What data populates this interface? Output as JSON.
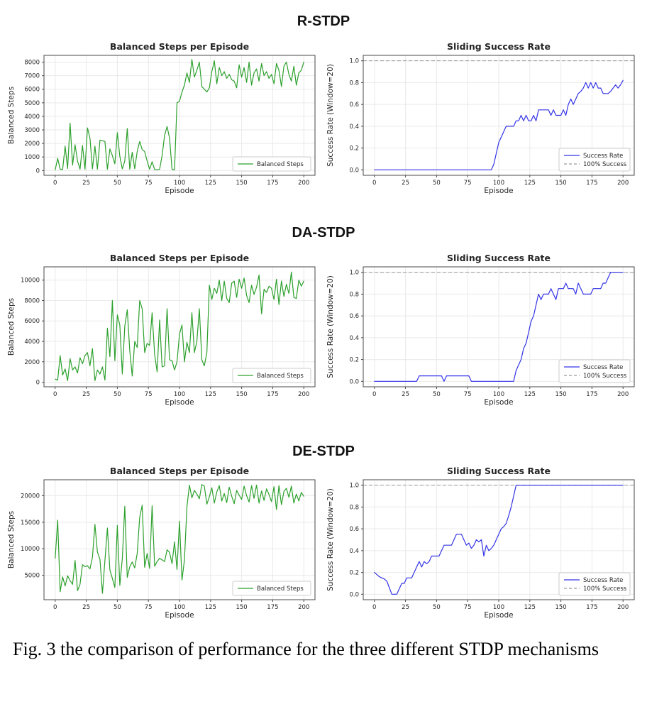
{
  "page": {
    "section_titles": [
      "R-STDP",
      "DA-STDP",
      "DE-STDP"
    ],
    "caption": "Fig. 3 the comparison of performance for the three different STDP mechanisms"
  },
  "chart_data": [
    {
      "id": "r-stdp-balanced-steps",
      "type": "line",
      "title": "Balanced Steps per Episode",
      "xlabel": "Episode",
      "ylabel": "Balanced Steps",
      "xlim": [
        -9,
        209
      ],
      "ylim": [
        -350,
        8500
      ],
      "xticks": [
        0,
        25,
        50,
        75,
        100,
        125,
        150,
        175,
        200
      ],
      "yticks": [
        0,
        1000,
        2000,
        3000,
        4000,
        5000,
        6000,
        7000,
        8000
      ],
      "ytick_labels": [
        "0",
        "1000",
        "2000",
        "3000",
        "4000",
        "5000",
        "6000",
        "7000",
        "8000"
      ],
      "grid": true,
      "legend_position": "lower right",
      "ref_line": null,
      "series": [
        {
          "name": "Balanced Steps",
          "color": "#2ca02c",
          "dash": null,
          "x_start": 0,
          "x_step": 2,
          "values": [
            50,
            900,
            100,
            80,
            1800,
            150,
            3500,
            400,
            1900,
            700,
            100,
            1850,
            90,
            3150,
            2400,
            120,
            1800,
            100,
            2250,
            2200,
            2150,
            90,
            1600,
            1100,
            500,
            2800,
            1050,
            120,
            700,
            3100,
            90,
            1350,
            130,
            1400,
            2150,
            1550,
            1400,
            700,
            100,
            650,
            80,
            60,
            100,
            1100,
            2600,
            3250,
            2400,
            90,
            60,
            5000,
            5100,
            5800,
            6300,
            7200,
            6500,
            8200,
            6900,
            7400,
            8000,
            6200,
            6000,
            5800,
            6100,
            7300,
            8100,
            6400,
            7600,
            7000,
            7300,
            6800,
            7100,
            6700,
            6600,
            6100,
            7800,
            6900,
            7600,
            6500,
            8000,
            6300,
            7200,
            7500,
            6600,
            7900,
            7000,
            7300,
            6800,
            7100,
            6400,
            7900,
            7400,
            6200,
            7700,
            8000,
            7100,
            6600,
            7700,
            6300,
            7200,
            7400,
            8000
          ]
        }
      ]
    },
    {
      "id": "r-stdp-success-rate",
      "type": "line",
      "title": "Sliding Success Rate",
      "xlabel": "Episode",
      "ylabel": "Success Rate (Window=20)",
      "xlim": [
        -9,
        209
      ],
      "ylim": [
        -0.05,
        1.05
      ],
      "xticks": [
        0,
        25,
        50,
        75,
        100,
        125,
        150,
        175,
        200
      ],
      "yticks": [
        0.0,
        0.2,
        0.4,
        0.6,
        0.8,
        1.0
      ],
      "ytick_labels": [
        "0.0",
        "0.2",
        "0.4",
        "0.6",
        "0.8",
        "1.0"
      ],
      "grid": true,
      "legend_position": "lower right",
      "ref_line": {
        "y": 1.0,
        "label": "100% Success",
        "color": "#999999"
      },
      "series": [
        {
          "name": "Success Rate",
          "color": "#3333e6",
          "dash": null,
          "x_start": 0,
          "x_step": 2,
          "values": [
            0,
            0,
            0,
            0,
            0,
            0,
            0,
            0,
            0,
            0,
            0,
            0,
            0,
            0,
            0,
            0,
            0,
            0,
            0,
            0,
            0,
            0,
            0,
            0,
            0,
            0,
            0,
            0,
            0,
            0,
            0,
            0,
            0,
            0,
            0,
            0,
            0,
            0,
            0,
            0,
            0,
            0,
            0,
            0,
            0,
            0,
            0,
            0,
            0.05,
            0.15,
            0.25,
            0.3,
            0.35,
            0.4,
            0.4,
            0.4,
            0.4,
            0.45,
            0.45,
            0.5,
            0.45,
            0.5,
            0.45,
            0.45,
            0.5,
            0.45,
            0.55,
            0.55,
            0.55,
            0.55,
            0.55,
            0.5,
            0.55,
            0.5,
            0.5,
            0.5,
            0.55,
            0.5,
            0.6,
            0.65,
            0.6,
            0.65,
            0.7,
            0.72,
            0.75,
            0.8,
            0.75,
            0.8,
            0.75,
            0.8,
            0.75,
            0.75,
            0.7,
            0.7,
            0.7,
            0.72,
            0.75,
            0.78,
            0.75,
            0.78,
            0.82
          ]
        }
      ]
    },
    {
      "id": "da-stdp-balanced-steps",
      "type": "line",
      "title": "Balanced Steps per Episode",
      "xlabel": "Episode",
      "ylabel": "Balanced Steps",
      "xlim": [
        -9,
        209
      ],
      "ylim": [
        -450,
        11300
      ],
      "xticks": [
        0,
        25,
        50,
        75,
        100,
        125,
        150,
        175,
        200
      ],
      "yticks": [
        0,
        2000,
        4000,
        6000,
        8000,
        10000
      ],
      "ytick_labels": [
        "0",
        "2000",
        "4000",
        "6000",
        "8000",
        "10000"
      ],
      "grid": true,
      "legend_position": "lower right",
      "ref_line": null,
      "series": [
        {
          "name": "Balanced Steps",
          "color": "#2ca02c",
          "dash": null,
          "x_start": 0,
          "x_step": 2,
          "values": [
            300,
            200,
            2600,
            700,
            1300,
            150,
            2300,
            1200,
            1500,
            900,
            2400,
            1800,
            2600,
            2900,
            1600,
            3300,
            150,
            1200,
            800,
            1500,
            200,
            5300,
            2500,
            8000,
            2100,
            6600,
            5600,
            800,
            5500,
            7100,
            3100,
            600,
            4000,
            3400,
            8000,
            7200,
            2900,
            3800,
            3600,
            6800,
            2700,
            1000,
            6100,
            1500,
            1600,
            7200,
            2200,
            2100,
            1200,
            2000,
            4700,
            5600,
            2000,
            3900,
            2900,
            6800,
            2900,
            4000,
            7200,
            2200,
            1600,
            2900,
            9500,
            8100,
            9200,
            8700,
            10000,
            8000,
            9900,
            8200,
            7800,
            9700,
            9900,
            8300,
            10100,
            9200,
            10200,
            8500,
            7800,
            9500,
            8600,
            9300,
            10500,
            6700,
            9100,
            8800,
            9400,
            9200,
            8100,
            10100,
            7600,
            9900,
            8400,
            9600,
            8700,
            10800,
            8300,
            8200,
            10000,
            9400,
            9900
          ]
        }
      ]
    },
    {
      "id": "da-stdp-success-rate",
      "type": "line",
      "title": "Sliding Success Rate",
      "xlabel": "Episode",
      "ylabel": "Success Rate (Window=20)",
      "xlim": [
        -9,
        209
      ],
      "ylim": [
        -0.05,
        1.05
      ],
      "xticks": [
        0,
        25,
        50,
        75,
        100,
        125,
        150,
        175,
        200
      ],
      "yticks": [
        0.0,
        0.2,
        0.4,
        0.6,
        0.8,
        1.0
      ],
      "ytick_labels": [
        "0.0",
        "0.2",
        "0.4",
        "0.6",
        "0.8",
        "1.0"
      ],
      "grid": true,
      "legend_position": "lower right",
      "ref_line": {
        "y": 1.0,
        "label": "100% Success",
        "color": "#999999"
      },
      "series": [
        {
          "name": "Success Rate",
          "color": "#3333e6",
          "dash": null,
          "x_start": 0,
          "x_step": 2,
          "values": [
            0,
            0,
            0,
            0,
            0,
            0,
            0,
            0,
            0,
            0,
            0,
            0,
            0,
            0,
            0,
            0,
            0,
            0,
            0.05,
            0.05,
            0.05,
            0.05,
            0.05,
            0.05,
            0.05,
            0.05,
            0.05,
            0.05,
            0,
            0.05,
            0.05,
            0.05,
            0.05,
            0.05,
            0.05,
            0.05,
            0.05,
            0.05,
            0.05,
            0,
            0,
            0,
            0,
            0,
            0,
            0,
            0,
            0,
            0,
            0,
            0,
            0,
            0,
            0,
            0,
            0,
            0,
            0.1,
            0.15,
            0.2,
            0.3,
            0.35,
            0.45,
            0.55,
            0.6,
            0.7,
            0.8,
            0.75,
            0.8,
            0.8,
            0.8,
            0.85,
            0.8,
            0.75,
            0.85,
            0.85,
            0.85,
            0.9,
            0.85,
            0.85,
            0.85,
            0.8,
            0.9,
            0.85,
            0.8,
            0.8,
            0.8,
            0.8,
            0.85,
            0.85,
            0.85,
            0.85,
            0.9,
            0.9,
            0.95,
            1.0,
            1.0,
            1.0,
            1.0,
            1.0,
            1.0
          ]
        }
      ]
    },
    {
      "id": "de-stdp-balanced-steps",
      "type": "line",
      "title": "Balanced Steps per Episode",
      "xlabel": "Episode",
      "ylabel": "Balanced Steps",
      "xlim": [
        -9,
        209
      ],
      "ylim": [
        400,
        23000
      ],
      "xticks": [
        0,
        25,
        50,
        75,
        100,
        125,
        150,
        175,
        200
      ],
      "yticks": [
        5000,
        10000,
        15000,
        20000
      ],
      "ytick_labels": [
        "5000",
        "10000",
        "15000",
        "20000"
      ],
      "grid": true,
      "legend_position": "lower right",
      "ref_line": null,
      "series": [
        {
          "name": "Balanced Steps",
          "color": "#2ca02c",
          "dash": null,
          "x_start": 0,
          "x_step": 2,
          "values": [
            8200,
            15400,
            1900,
            4700,
            3000,
            4900,
            4000,
            3300,
            7800,
            2100,
            3300,
            7000,
            6600,
            6800,
            6200,
            8400,
            14600,
            9400,
            8000,
            1600,
            7800,
            13900,
            6000,
            4400,
            2700,
            14400,
            3100,
            8100,
            18000,
            4600,
            6600,
            7500,
            6400,
            9100,
            15900,
            18200,
            6500,
            9100,
            6300,
            18100,
            6700,
            7600,
            8200,
            7900,
            7600,
            9800,
            9300,
            7200,
            11300,
            6100,
            15200,
            4100,
            7900,
            17900,
            22000,
            19600,
            21000,
            20300,
            19400,
            22100,
            21800,
            18400,
            19800,
            21500,
            18600,
            20700,
            21900,
            19000,
            20400,
            18700,
            21600,
            19900,
            18500,
            21000,
            20100,
            19300,
            21800,
            20000,
            18800,
            21900,
            19500,
            22000,
            18600,
            20900,
            19100,
            21300,
            20200,
            18900,
            21700,
            17400,
            21900,
            18300,
            20800,
            21400,
            19700,
            21800,
            18600,
            20300,
            19000,
            20600,
            19900
          ]
        }
      ]
    },
    {
      "id": "de-stdp-success-rate",
      "type": "line",
      "title": "Sliding Success Rate",
      "xlabel": "Episode",
      "ylabel": "Success Rate (Window=20)",
      "xlim": [
        -9,
        209
      ],
      "ylim": [
        -0.05,
        1.05
      ],
      "xticks": [
        0,
        25,
        50,
        75,
        100,
        125,
        150,
        175,
        200
      ],
      "yticks": [
        0.0,
        0.2,
        0.4,
        0.6,
        0.8,
        1.0
      ],
      "ytick_labels": [
        "0.0",
        "0.2",
        "0.4",
        "0.6",
        "0.8",
        "1.0"
      ],
      "grid": true,
      "legend_position": "lower right",
      "ref_line": {
        "y": 1.0,
        "label": "100% Success",
        "color": "#999999"
      },
      "series": [
        {
          "name": "Success Rate",
          "color": "#3333e6",
          "dash": null,
          "x_start": 0,
          "x_step": 2,
          "values": [
            0.2,
            0.18,
            0.16,
            0.15,
            0.14,
            0.12,
            0.06,
            0,
            0,
            0,
            0.05,
            0.1,
            0.1,
            0.15,
            0.15,
            0.15,
            0.2,
            0.25,
            0.3,
            0.25,
            0.3,
            0.28,
            0.3,
            0.35,
            0.35,
            0.35,
            0.35,
            0.4,
            0.45,
            0.45,
            0.45,
            0.45,
            0.5,
            0.55,
            0.55,
            0.55,
            0.5,
            0.45,
            0.47,
            0.42,
            0.45,
            0.5,
            0.48,
            0.5,
            0.35,
            0.45,
            0.4,
            0.42,
            0.45,
            0.5,
            0.55,
            0.6,
            0.62,
            0.65,
            0.72,
            0.8,
            0.9,
            1.0,
            1.0,
            1.0,
            1.0,
            1.0,
            1.0,
            1.0,
            1.0,
            1.0,
            1.0,
            1.0,
            1.0,
            1.0,
            1.0,
            1.0,
            1.0,
            1.0,
            1.0,
            1.0,
            1.0,
            1.0,
            1.0,
            1.0,
            1.0,
            1.0,
            1.0,
            1.0,
            1.0,
            1.0,
            1.0,
            1.0,
            1.0,
            1.0,
            1.0,
            1.0,
            1.0,
            1.0,
            1.0,
            1.0,
            1.0,
            1.0,
            1.0,
            1.0,
            1.0
          ]
        }
      ]
    }
  ]
}
